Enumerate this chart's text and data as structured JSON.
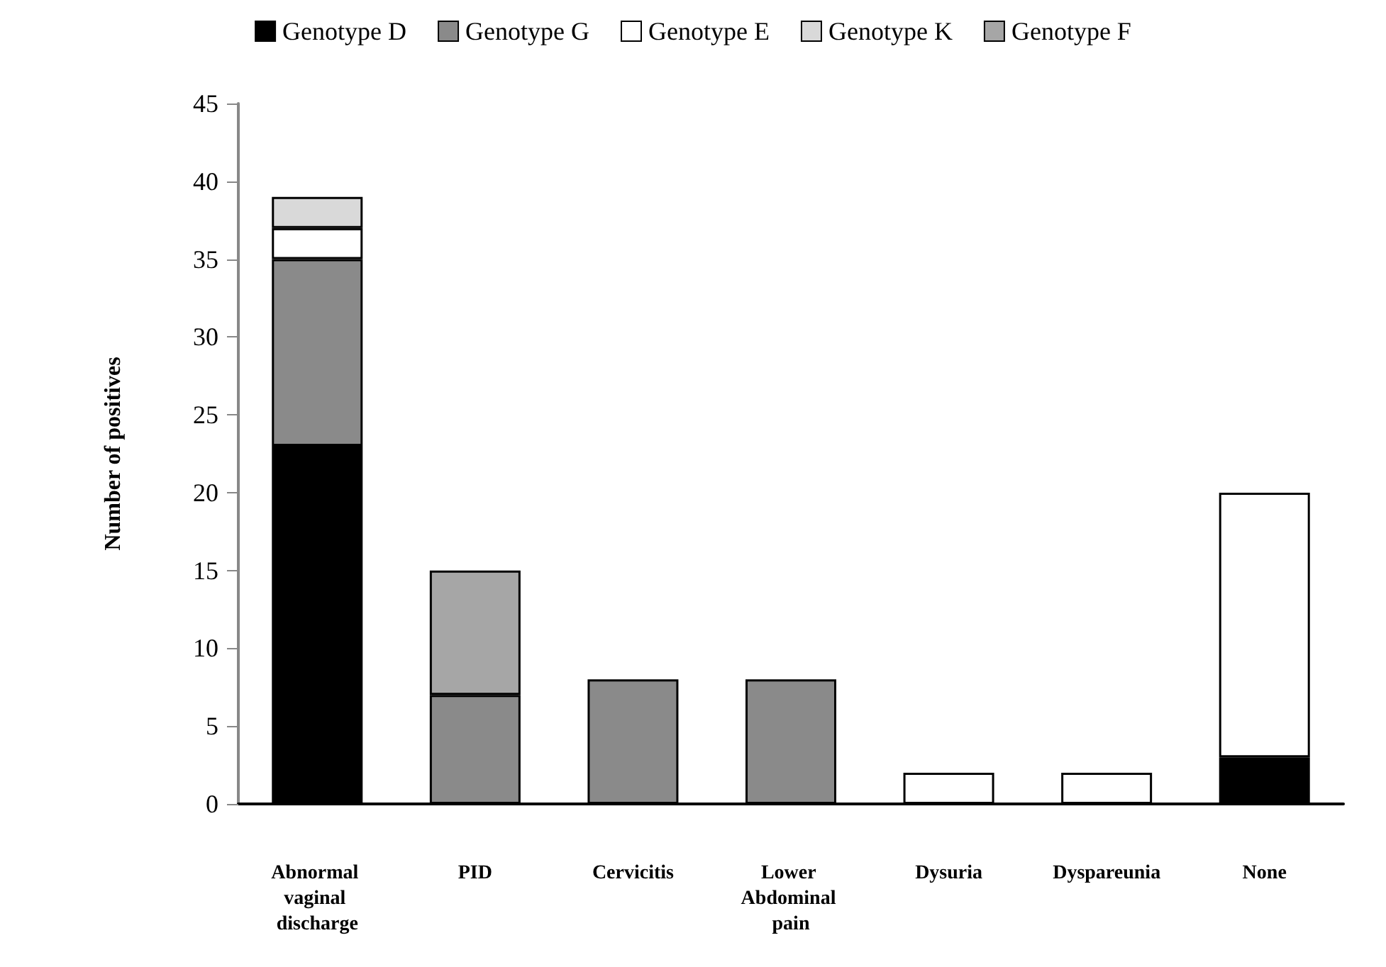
{
  "chart_data": {
    "type": "bar",
    "stacked": true,
    "ylabel": "Number of positives",
    "categories": [
      "Abnormal vaginal discharge",
      "PID",
      "Cervicitis",
      "Lower Abdominal pain",
      "Dysuria",
      "Dyspareunia",
      "None"
    ],
    "series": [
      {
        "name": "Genotype D",
        "color": "#000000",
        "values": [
          23,
          0,
          0,
          0,
          0,
          0,
          3
        ]
      },
      {
        "name": "Genotype G",
        "color": "#8a8a8a",
        "values": [
          12,
          7,
          8,
          8,
          0,
          0,
          0
        ]
      },
      {
        "name": "Genotype E",
        "color": "#ffffff",
        "values": [
          2,
          0,
          0,
          0,
          2,
          2,
          17
        ]
      },
      {
        "name": "Genotype K",
        "color": "#d9d9d9",
        "values": [
          2,
          0,
          0,
          0,
          0,
          0,
          0
        ]
      },
      {
        "name": "Genotype F",
        "color": "#a6a6a6",
        "values": [
          0,
          8,
          0,
          0,
          0,
          0,
          0
        ]
      }
    ],
    "ylim": [
      0,
      45
    ],
    "yticks": [
      0,
      5,
      10,
      15,
      20,
      25,
      30,
      35,
      40,
      45
    ],
    "grid": false,
    "legend": "top"
  }
}
